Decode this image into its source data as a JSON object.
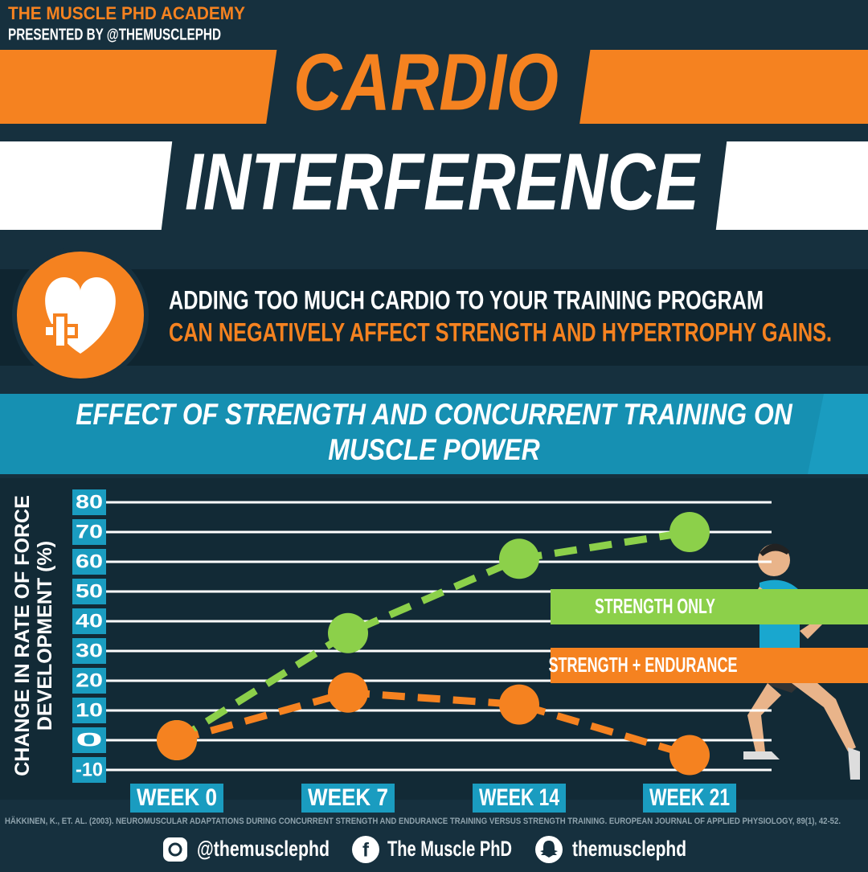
{
  "header": {
    "brand": "THE MUSCLE PHD ACADEMY",
    "presenter": "PRESENTED BY @THEMUSCLEPHD"
  },
  "title": {
    "line1": "CARDIO",
    "line2": "INTERFERENCE"
  },
  "intro": {
    "line1": "ADDING TOO MUCH CARDIO TO YOUR TRAINING PROGRAM",
    "line2": "CAN NEGATIVELY AFFECT STRENGTH AND HYPERTROPHY GAINS."
  },
  "chart_data": {
    "type": "line",
    "title": "EFFECT OF STRENGTH AND CONCURRENT TRAINING ON MUSCLE POWER",
    "y_label": "CHANGE IN RATE OF FORCE DEVELOPMENT (%)",
    "categories": [
      "WEEK 0",
      "WEEK 7",
      "WEEK 14",
      "WEEK 21"
    ],
    "series": [
      {
        "name": "STRENGTH ONLY",
        "color": "#8cd04a",
        "values": [
          0,
          36,
          61,
          70
        ]
      },
      {
        "name": "STRENGTH + ENDURANCE",
        "color": "#f58220",
        "values": [
          0,
          16,
          12,
          -5
        ]
      }
    ],
    "ylim": [
      -10,
      80
    ],
    "yticks": [
      -10,
      0,
      10,
      20,
      30,
      40,
      50,
      60,
      70,
      80
    ],
    "grid": true,
    "legend": "right"
  },
  "citation": "HÄKKINEN, K., ET. AL. (2003). NEUROMUSCULAR ADAPTATIONS DURING CONCURRENT STRENGTH AND ENDURANCE TRAINING VERSUS STRENGTH TRAINING. EUROPEAN JOURNAL OF APPLIED PHYSIOLOGY, 89(1), 42-52.",
  "social": {
    "instagram": "@themusclephd",
    "facebook": "The Muscle PhD",
    "snapchat": "themusclephd"
  }
}
